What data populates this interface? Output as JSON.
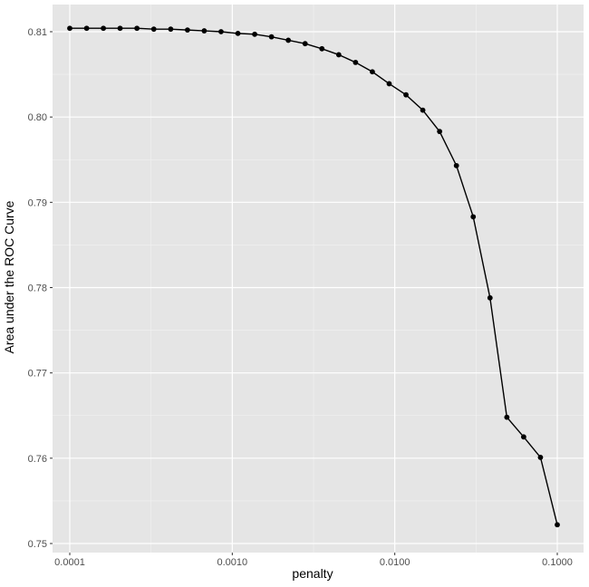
{
  "chart_data": {
    "type": "line",
    "title": "",
    "xlabel": "penalty",
    "ylabel": "Area under the ROC Curve",
    "x_scale": "log10",
    "xlim": [
      0.0001,
      0.1
    ],
    "ylim": [
      0.75,
      0.81
    ],
    "x_ticks": [
      0.0001,
      0.001,
      0.01,
      0.1
    ],
    "x_tick_labels": [
      "0.0001",
      "0.0010",
      "0.0100",
      "0.1000"
    ],
    "y_ticks": [
      0.75,
      0.76,
      0.77,
      0.78,
      0.79,
      0.8,
      0.81
    ],
    "y_tick_labels": [
      "0.75",
      "0.76",
      "0.77",
      "0.78",
      "0.79",
      "0.80",
      "0.81"
    ],
    "grid": true,
    "colors": {
      "panel": "#e5e5e5",
      "grid": "#ffffff",
      "line": "#000000",
      "text": "#4d4d4d"
    },
    "series": [
      {
        "x": [
          0.0001,
          0.000127,
          0.000161,
          0.000204,
          0.000259,
          0.000329,
          0.000418,
          0.00053,
          0.000672,
          0.000853,
          0.001083,
          0.001374,
          0.001743,
          0.002212,
          0.002807,
          0.003562,
          0.00452,
          0.005736,
          0.007279,
          0.009237,
          0.011721,
          0.014874,
          0.018874,
          0.02395,
          0.030392,
          0.038566,
          0.048939,
          0.062102,
          0.078805,
          0.1
        ],
        "y": [
          0.8104,
          0.8104,
          0.8104,
          0.8104,
          0.8104,
          0.8103,
          0.8103,
          0.8102,
          0.8101,
          0.81,
          0.8098,
          0.8097,
          0.8094,
          0.809,
          0.8086,
          0.808,
          0.8073,
          0.8064,
          0.8053,
          0.8039,
          0.8026,
          0.8008,
          0.7983,
          0.7943,
          0.7883,
          0.7788,
          0.7648,
          0.7625,
          0.7601,
          0.7522
        ]
      }
    ]
  }
}
